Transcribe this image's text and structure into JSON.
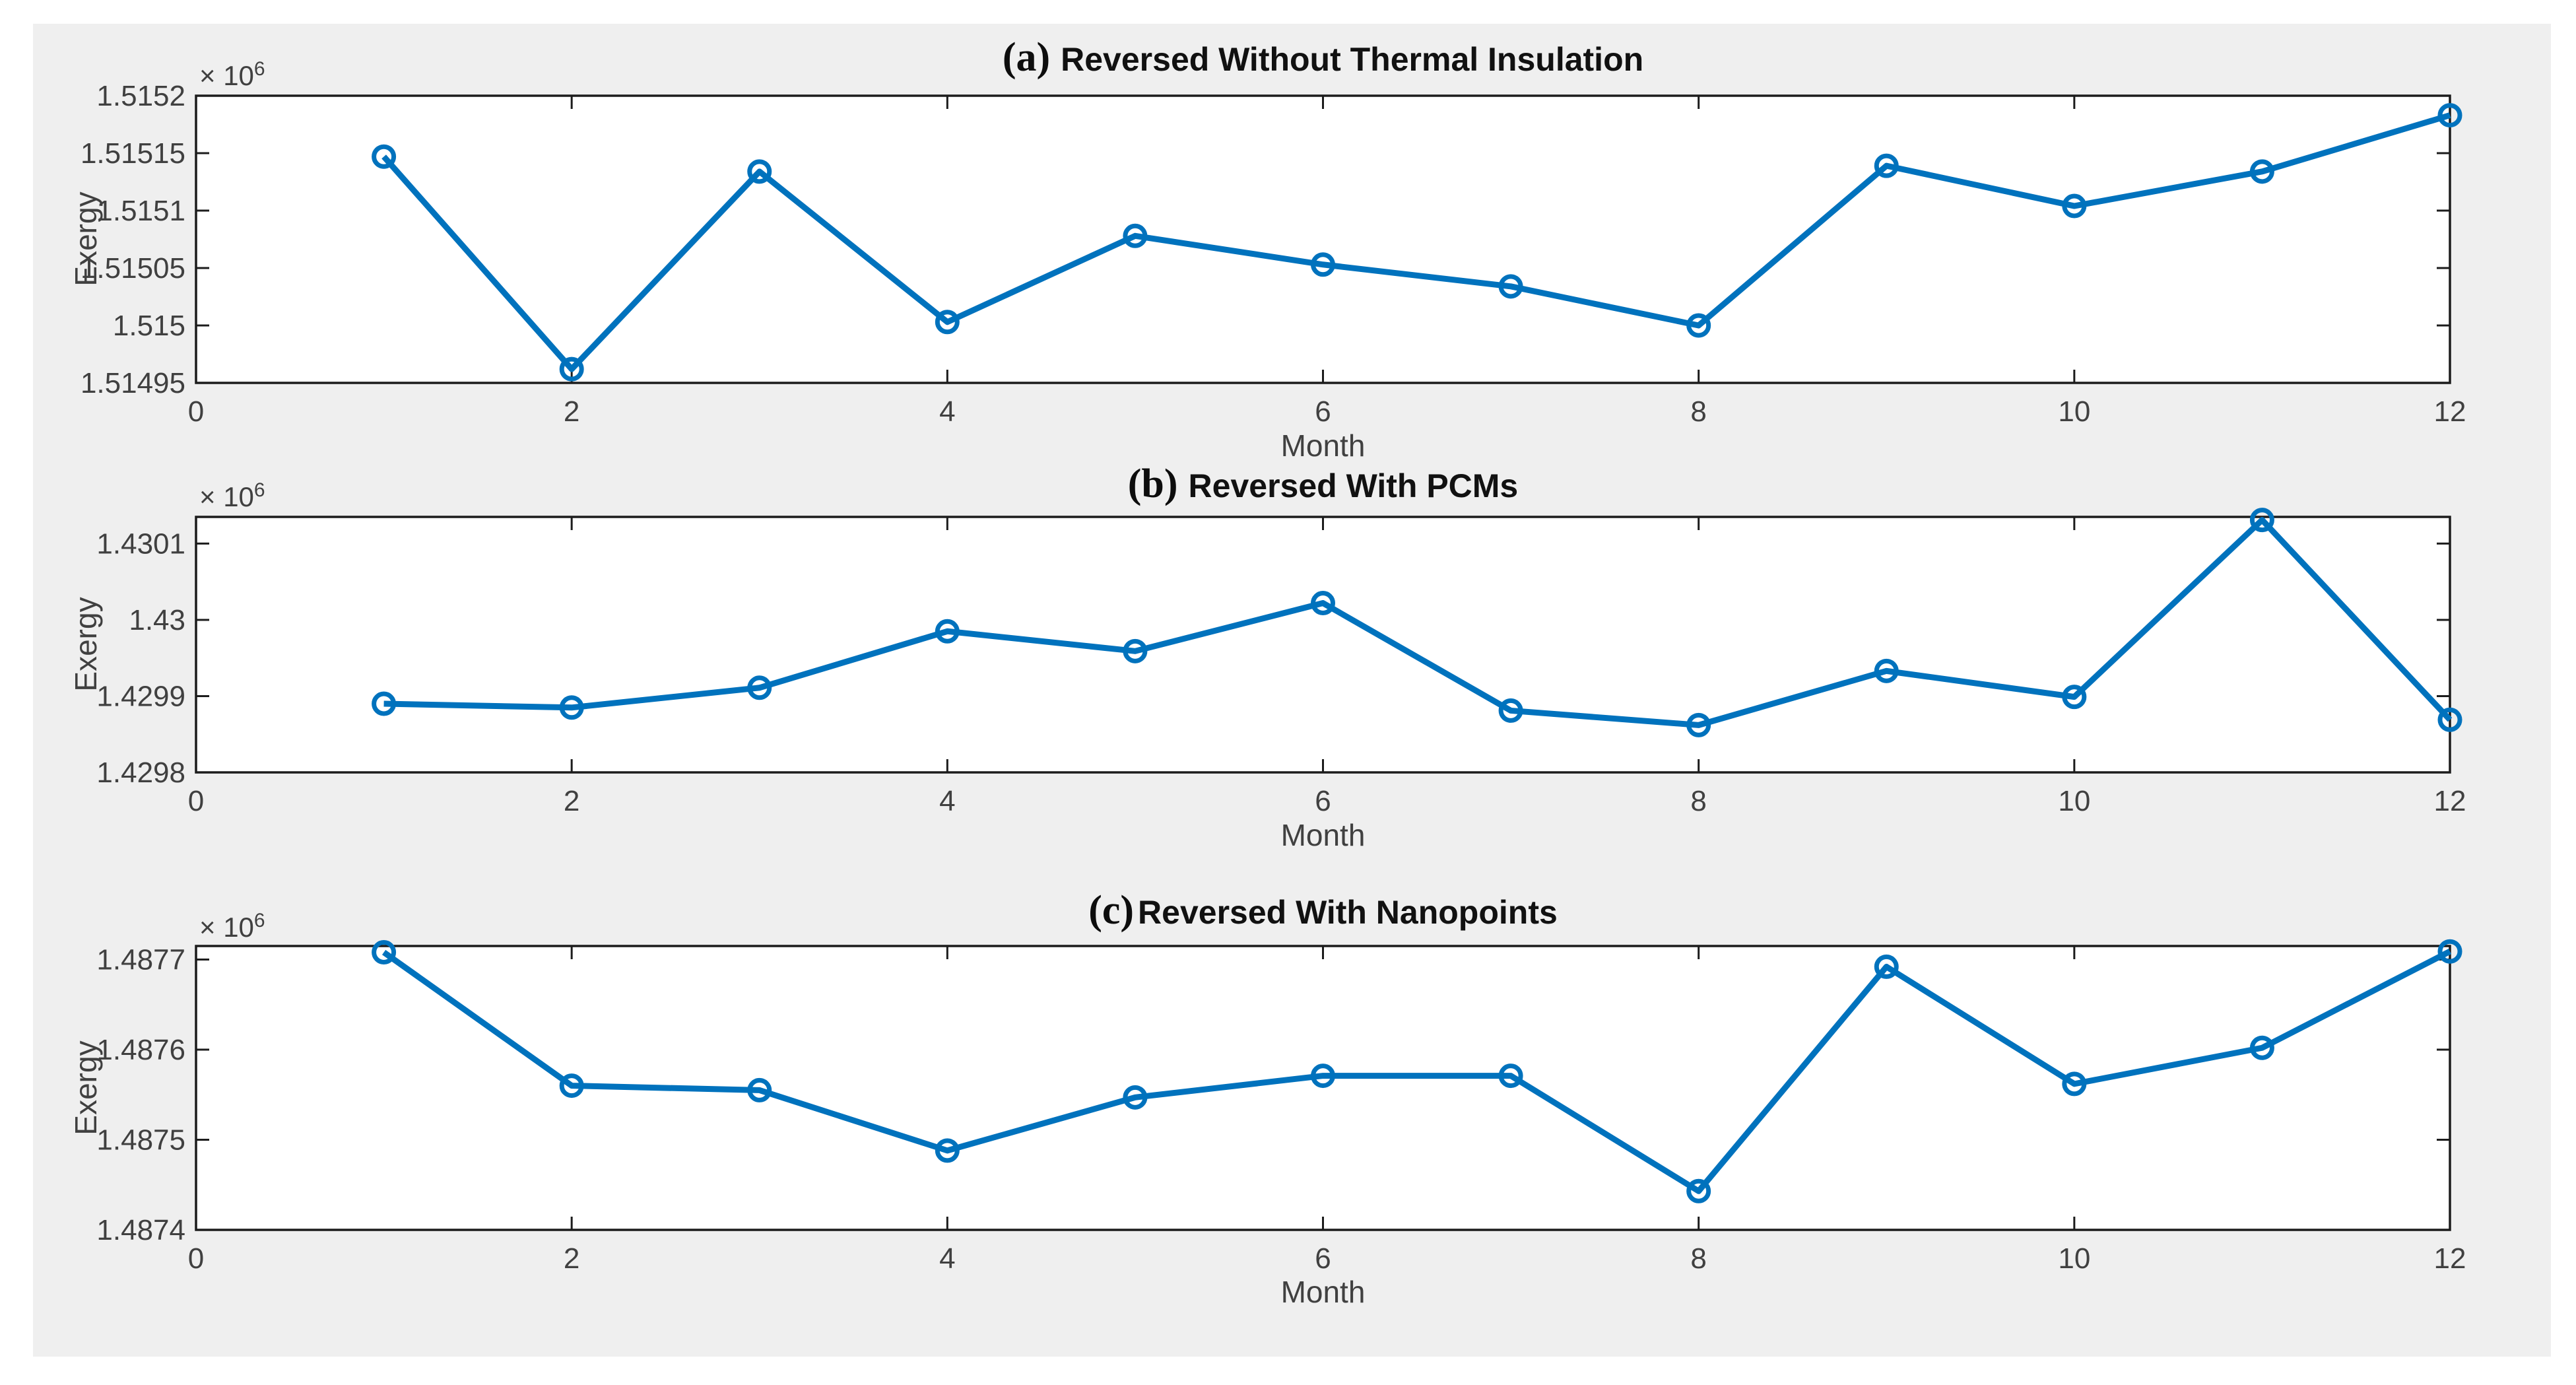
{
  "figure": {
    "background_color": "#efefef",
    "page_background": "#ffffff",
    "description": "MATLAB-style figure with three stacked line subplots of monthly exergy"
  },
  "colors": {
    "line": "#0072BD",
    "axis": "#1c1c1c",
    "tick_label": "#404040",
    "plot_bg": "#ffffff",
    "title": "#111111"
  },
  "chart_data": {
    "type": "line",
    "charts": [
      {
        "panel_label": "(a)",
        "title": "Reversed Without Thermal Insulation",
        "xlabel": "Month",
        "ylabel": "Exergy",
        "scale_base": "× 10",
        "scale_exp": "6",
        "legend": "none",
        "grid": false,
        "marker": "open-circle",
        "x": [
          1,
          2,
          3,
          4,
          5,
          6,
          7,
          8,
          9,
          10,
          11,
          12
        ],
        "values": [
          1515147,
          1514962,
          1515134,
          1515003,
          1515078,
          1515053,
          1515034,
          1515000,
          1515139,
          1515104,
          1515134,
          1515183
        ],
        "xlim": [
          0,
          12
        ],
        "xticks": [
          0,
          2,
          4,
          6,
          8,
          10,
          12
        ],
        "xtick_labels": [
          "0",
          "2",
          "4",
          "6",
          "8",
          "10",
          "12"
        ],
        "ylim": [
          1514950,
          1515200
        ],
        "ytick_values": [
          1514950,
          1515000,
          1515050,
          1515100,
          1515150,
          1515200
        ],
        "ytick_labels": [
          "1.51495",
          "1.515",
          "1.51505",
          "1.5151",
          "1.51515",
          "1.5152"
        ]
      },
      {
        "panel_label": "(b)",
        "title": "Reversed With PCMs",
        "xlabel": "Month",
        "ylabel": "Exergy",
        "scale_base": "× 10",
        "scale_exp": "6",
        "legend": "none",
        "grid": false,
        "marker": "open-circle",
        "x": [
          1,
          2,
          3,
          4,
          5,
          6,
          7,
          8,
          9,
          10,
          11,
          12
        ],
        "values": [
          1429890,
          1429885,
          1429911,
          1429985,
          1429959,
          1430022,
          1429881,
          1429862,
          1429933,
          1429899,
          1430131,
          1429869
        ],
        "xlim": [
          0,
          12
        ],
        "xticks": [
          0,
          2,
          4,
          6,
          8,
          10,
          12
        ],
        "xtick_labels": [
          "0",
          "2",
          "4",
          "6",
          "8",
          "10",
          "12"
        ],
        "ylim": [
          1429800,
          1430135
        ],
        "ytick_values": [
          1429800,
          1429900,
          1430000,
          1430100
        ],
        "ytick_labels": [
          "1.4298",
          "1.4299",
          "1.43",
          "1.4301"
        ]
      },
      {
        "panel_label": "(c)",
        "title": "Reversed With Nanopoints",
        "xlabel": "Month",
        "ylabel": "Exergy",
        "scale_base": "× 10",
        "scale_exp": "6",
        "legend": "none",
        "grid": false,
        "marker": "open-circle",
        "x": [
          1,
          2,
          3,
          4,
          5,
          6,
          7,
          8,
          9,
          10,
          11,
          12
        ],
        "values": [
          1487708,
          1487560,
          1487555,
          1487488,
          1487547,
          1487571,
          1487571,
          1487443,
          1487692,
          1487562,
          1487602,
          1487709
        ],
        "xlim": [
          0,
          12
        ],
        "xticks": [
          0,
          2,
          4,
          6,
          8,
          10,
          12
        ],
        "xtick_labels": [
          "0",
          "2",
          "4",
          "6",
          "8",
          "10",
          "12"
        ],
        "ylim": [
          1487400,
          1487715
        ],
        "ytick_values": [
          1487400,
          1487500,
          1487600,
          1487700
        ],
        "ytick_labels": [
          "1.4874",
          "1.4875",
          "1.4876",
          "1.4877"
        ]
      }
    ]
  }
}
